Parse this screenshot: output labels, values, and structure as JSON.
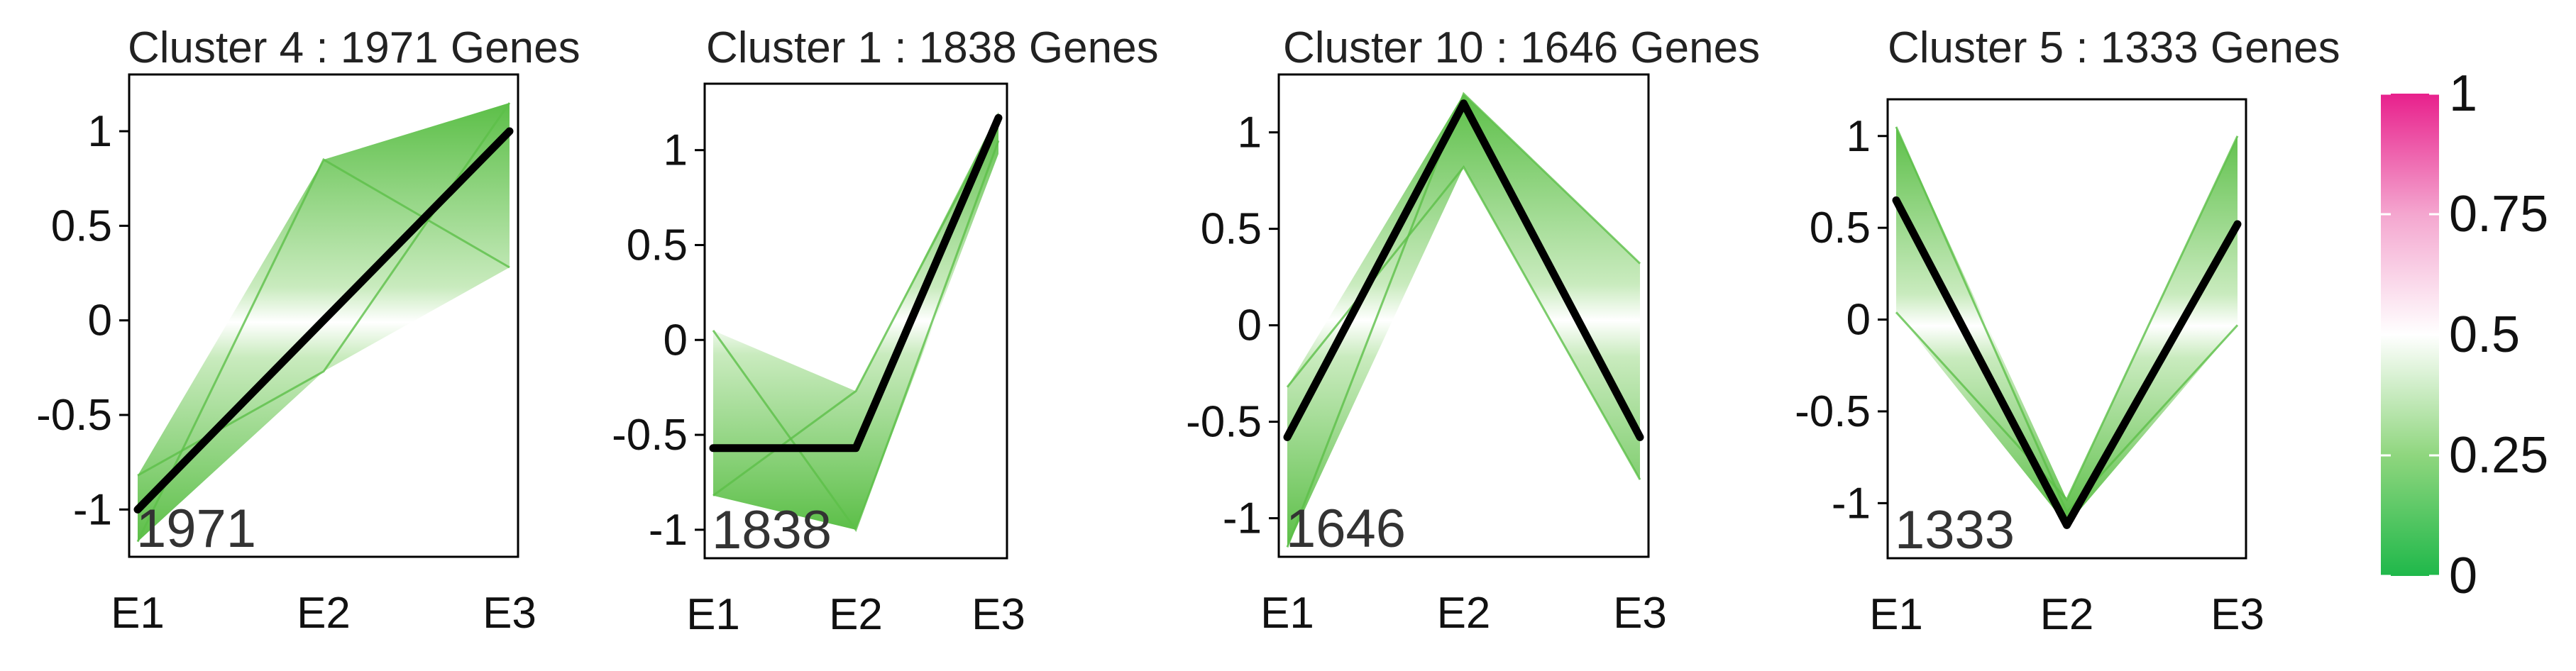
{
  "chart_data": [
    {
      "type": "line",
      "title": "Cluster 4 : 1971 Genes",
      "categories": [
        "E1",
        "E2",
        "E3"
      ],
      "yticks": [
        "-1",
        "-0.5",
        "0",
        "0.5",
        "1"
      ],
      "ylim": [
        -1.25,
        1.3
      ],
      "count_label": "1971",
      "centroid": [
        -1.0,
        0.0,
        1.0
      ],
      "envelope_upper": [
        -0.82,
        0.85,
        1.15
      ],
      "envelope_lower": [
        -1.17,
        -0.27,
        0.28
      ],
      "members": [
        [
          -1.17,
          0.85,
          0.28
        ],
        [
          -0.82,
          -0.27,
          1.15
        ]
      ]
    },
    {
      "type": "line",
      "title": "Cluster 1 : 1838 Genes",
      "categories": [
        "E1",
        "E2",
        "E3"
      ],
      "yticks": [
        "-1",
        "-0.5",
        "0",
        "0.5",
        "1"
      ],
      "ylim": [
        -1.15,
        1.35
      ],
      "count_label": "1838",
      "centroid": [
        -0.57,
        -0.57,
        1.17
      ],
      "envelope_upper": [
        0.05,
        -0.27,
        1.2
      ],
      "envelope_lower": [
        -0.82,
        -1.0,
        0.98
      ],
      "members": [
        [
          0.05,
          -1.0,
          1.05
        ],
        [
          -0.82,
          -0.27,
          1.17
        ]
      ]
    },
    {
      "type": "line",
      "title": "Cluster 10 : 1646 Genes",
      "categories": [
        "E1",
        "E2",
        "E3"
      ],
      "yticks": [
        "-1",
        "-0.5",
        "0",
        "0.5",
        "1"
      ],
      "ylim": [
        -1.2,
        1.3
      ],
      "count_label": "1646",
      "centroid": [
        -0.58,
        1.15,
        -0.58
      ],
      "envelope_upper": [
        -0.32,
        1.2,
        0.32
      ],
      "envelope_lower": [
        -1.15,
        0.82,
        -0.8
      ],
      "members": [
        [
          -1.15,
          1.2,
          0.32
        ],
        [
          -0.32,
          0.82,
          -0.8
        ]
      ]
    },
    {
      "type": "line",
      "title": "Cluster 5 : 1333 Genes",
      "categories": [
        "E1",
        "E2",
        "E3"
      ],
      "yticks": [
        "-1",
        "-0.5",
        "0",
        "0.5",
        "1"
      ],
      "ylim": [
        -1.3,
        1.2
      ],
      "count_label": "1333",
      "centroid": [
        0.65,
        -1.12,
        0.52
      ],
      "envelope_upper": [
        1.05,
        -0.98,
        1.0
      ],
      "envelope_lower": [
        0.04,
        -1.12,
        -0.03
      ],
      "members": [
        [
          1.05,
          -1.05,
          -0.03
        ],
        [
          0.04,
          -0.98,
          1.0
        ]
      ]
    }
  ],
  "colorbar": {
    "ticks": [
      "0",
      "0.25",
      "0.5",
      "0.75",
      "1"
    ],
    "range": [
      0,
      1
    ],
    "colors": {
      "low": "#1fb84a",
      "mid": "#ffffff",
      "high": "#e8208c"
    }
  },
  "colors": {
    "centroid": "#000000",
    "band_edge": "#5cbf48",
    "band_center": "#ffffff",
    "frame": "#000000"
  }
}
